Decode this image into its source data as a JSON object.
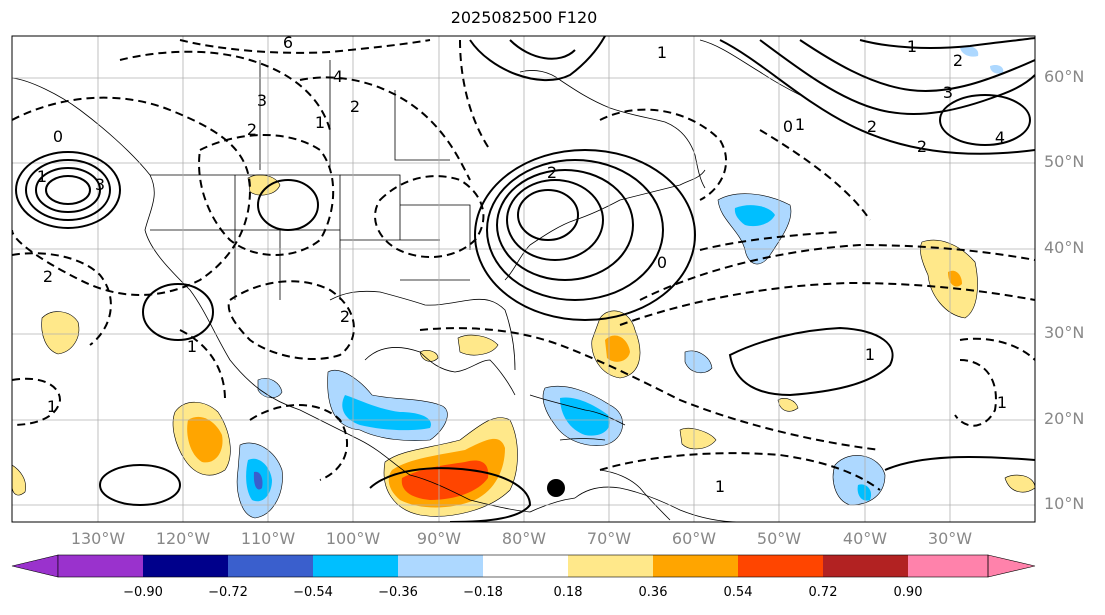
{
  "title": "2025082500 F120",
  "lat_labels": [
    "60°N",
    "50°N",
    "40°N",
    "30°N",
    "20°N",
    "10°N"
  ],
  "lon_labels": [
    "130°W",
    "120°W",
    "110°W",
    "100°W",
    "90°W",
    "80°W",
    "70°W",
    "60°W",
    "50°W",
    "40°W",
    "30°W"
  ],
  "colorbar": {
    "ticks": [
      "−0.90",
      "−0.72",
      "−0.54",
      "−0.36",
      "−0.18",
      "0.18",
      "0.36",
      "0.54",
      "0.72",
      "0.90"
    ],
    "colors": [
      "#9a32cd",
      "#00008b",
      "#3a5fcd",
      "#00bfff",
      "#add8ff",
      "#ffffff",
      "#ffe88a",
      "#ffa500",
      "#ff4500",
      "#b22222",
      "#ff82ab"
    ]
  },
  "contour_labels": [
    "6",
    "4",
    "3",
    "2",
    "1",
    "0",
    "1",
    "2",
    "3",
    "4",
    "1",
    "2",
    "3",
    "2",
    "1",
    "0",
    "2",
    "1",
    "2",
    "0",
    "1",
    "2",
    "1",
    "1",
    "1",
    "2",
    "1"
  ],
  "colors": {
    "land_outline": "#000000",
    "grid": "#b0b0b0",
    "label_gray": "#888888"
  }
}
